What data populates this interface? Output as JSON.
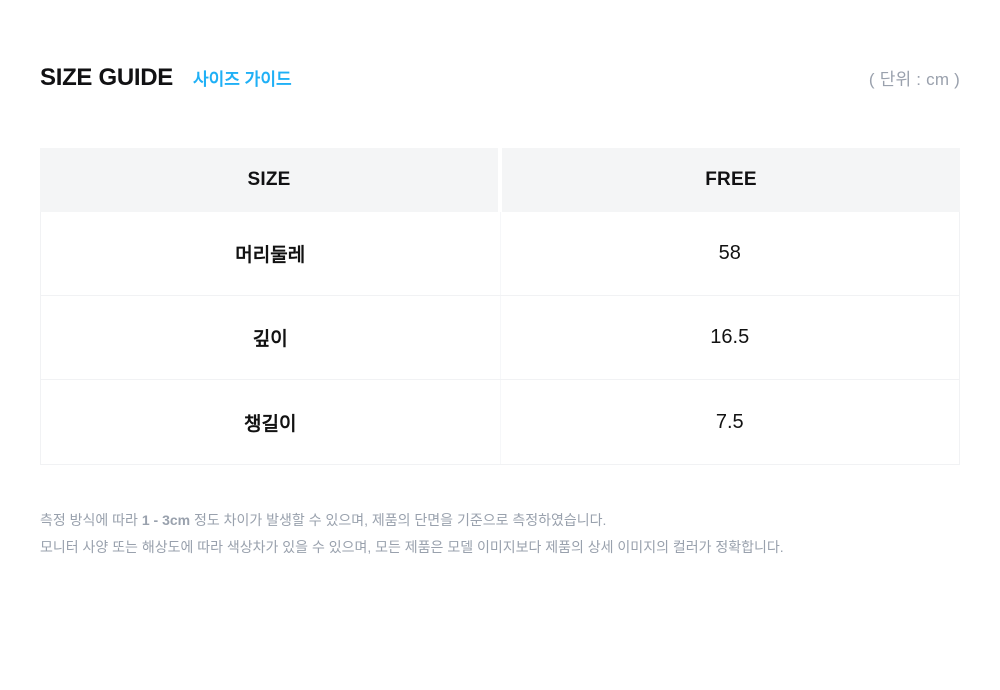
{
  "header": {
    "title": "SIZE GUIDE",
    "subtitle": "사이즈 가이드",
    "unit": "( 단위 : cm )"
  },
  "colors": {
    "accent_blue": "#1fb0f6",
    "table_header_bg": "#f4f5f6",
    "muted_gray": "#99a1ad",
    "text": "#111113"
  },
  "table": {
    "columns": [
      "SIZE",
      "FREE"
    ],
    "rows": [
      {
        "label": "머리둘레",
        "value": "58"
      },
      {
        "label": "깊이",
        "value": "16.5"
      },
      {
        "label": "챙길이",
        "value": "7.5"
      }
    ]
  },
  "notes": {
    "line1_prefix": "측정 방식에 따라 ",
    "line1_bold": "1 - 3cm",
    "line1_suffix": " 정도 차이가 발생할 수 있으며, 제품의 단면을 기준으로 측정하였습니다.",
    "line2": "모니터 사양 또는 해상도에 따라 색상차가 있을 수 있으며, 모든 제품은 모델 이미지보다 제품의 상세 이미지의 컬러가 정확합니다."
  }
}
